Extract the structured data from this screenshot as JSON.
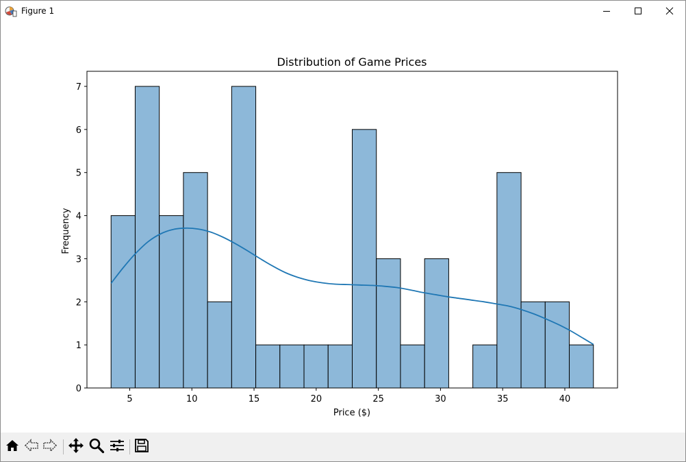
{
  "window": {
    "title": "Figure 1",
    "icons": {
      "app": "matplotlib-figure-icon",
      "minimize": "minimize-icon",
      "maximize": "maximize-icon",
      "close": "close-icon"
    }
  },
  "toolbar": {
    "buttons": [
      {
        "name": "home-icon"
      },
      {
        "name": "back-arrow-icon"
      },
      {
        "name": "forward-arrow-icon"
      },
      {
        "name": "pan-move-icon"
      },
      {
        "name": "zoom-magnifier-icon"
      },
      {
        "name": "configure-subplots-icon"
      },
      {
        "name": "save-floppy-icon"
      }
    ]
  },
  "chart_data": {
    "type": "bar",
    "title": "Distribution of Game Prices",
    "xlabel": "Price ($)",
    "ylabel": "Frequency",
    "bin_edges": [
      3.5,
      5.44,
      7.38,
      9.32,
      11.26,
      13.2,
      15.14,
      17.08,
      19.02,
      20.96,
      22.9,
      24.84,
      26.78,
      28.72,
      30.66,
      32.6,
      34.54,
      36.48,
      38.42,
      40.36,
      42.3
    ],
    "values": [
      4,
      7,
      4,
      5,
      2,
      7,
      1,
      1,
      1,
      1,
      6,
      3,
      1,
      3,
      0,
      1,
      5,
      2,
      2,
      1
    ],
    "kde": {
      "x": [
        3.5,
        4.5,
        5.5,
        6.5,
        7.5,
        8.5,
        9.5,
        10.5,
        11.5,
        12.5,
        13.5,
        14.5,
        15.5,
        16.5,
        17.5,
        18.5,
        19.5,
        20.5,
        21.5,
        22.5,
        23.5,
        24.5,
        25.5,
        26.5,
        27.5,
        28.5,
        29.5,
        30.5,
        31.5,
        32.5,
        33.5,
        34.5,
        35.5,
        36.5,
        37.5,
        38.5,
        39.5,
        40.5,
        41.5,
        42.3
      ],
      "y": [
        2.43,
        2.8,
        3.13,
        3.4,
        3.58,
        3.68,
        3.71,
        3.69,
        3.62,
        3.5,
        3.35,
        3.18,
        3.0,
        2.83,
        2.68,
        2.57,
        2.49,
        2.44,
        2.41,
        2.4,
        2.39,
        2.38,
        2.36,
        2.33,
        2.28,
        2.22,
        2.17,
        2.12,
        2.08,
        2.04,
        2.0,
        1.95,
        1.9,
        1.82,
        1.72,
        1.6,
        1.47,
        1.32,
        1.15,
        1.01
      ]
    },
    "xlim": [
      1.56,
      44.24
    ],
    "ylim": [
      0,
      7.35
    ],
    "xticks": [
      5,
      10,
      15,
      20,
      25,
      30,
      35,
      40
    ],
    "yticks": [
      0,
      1,
      2,
      3,
      4,
      5,
      6,
      7
    ],
    "bar_color": "#8db8d9",
    "bar_edge_color": "#000000",
    "kde_color": "#1f77b4",
    "grid": false,
    "legend": "none"
  }
}
